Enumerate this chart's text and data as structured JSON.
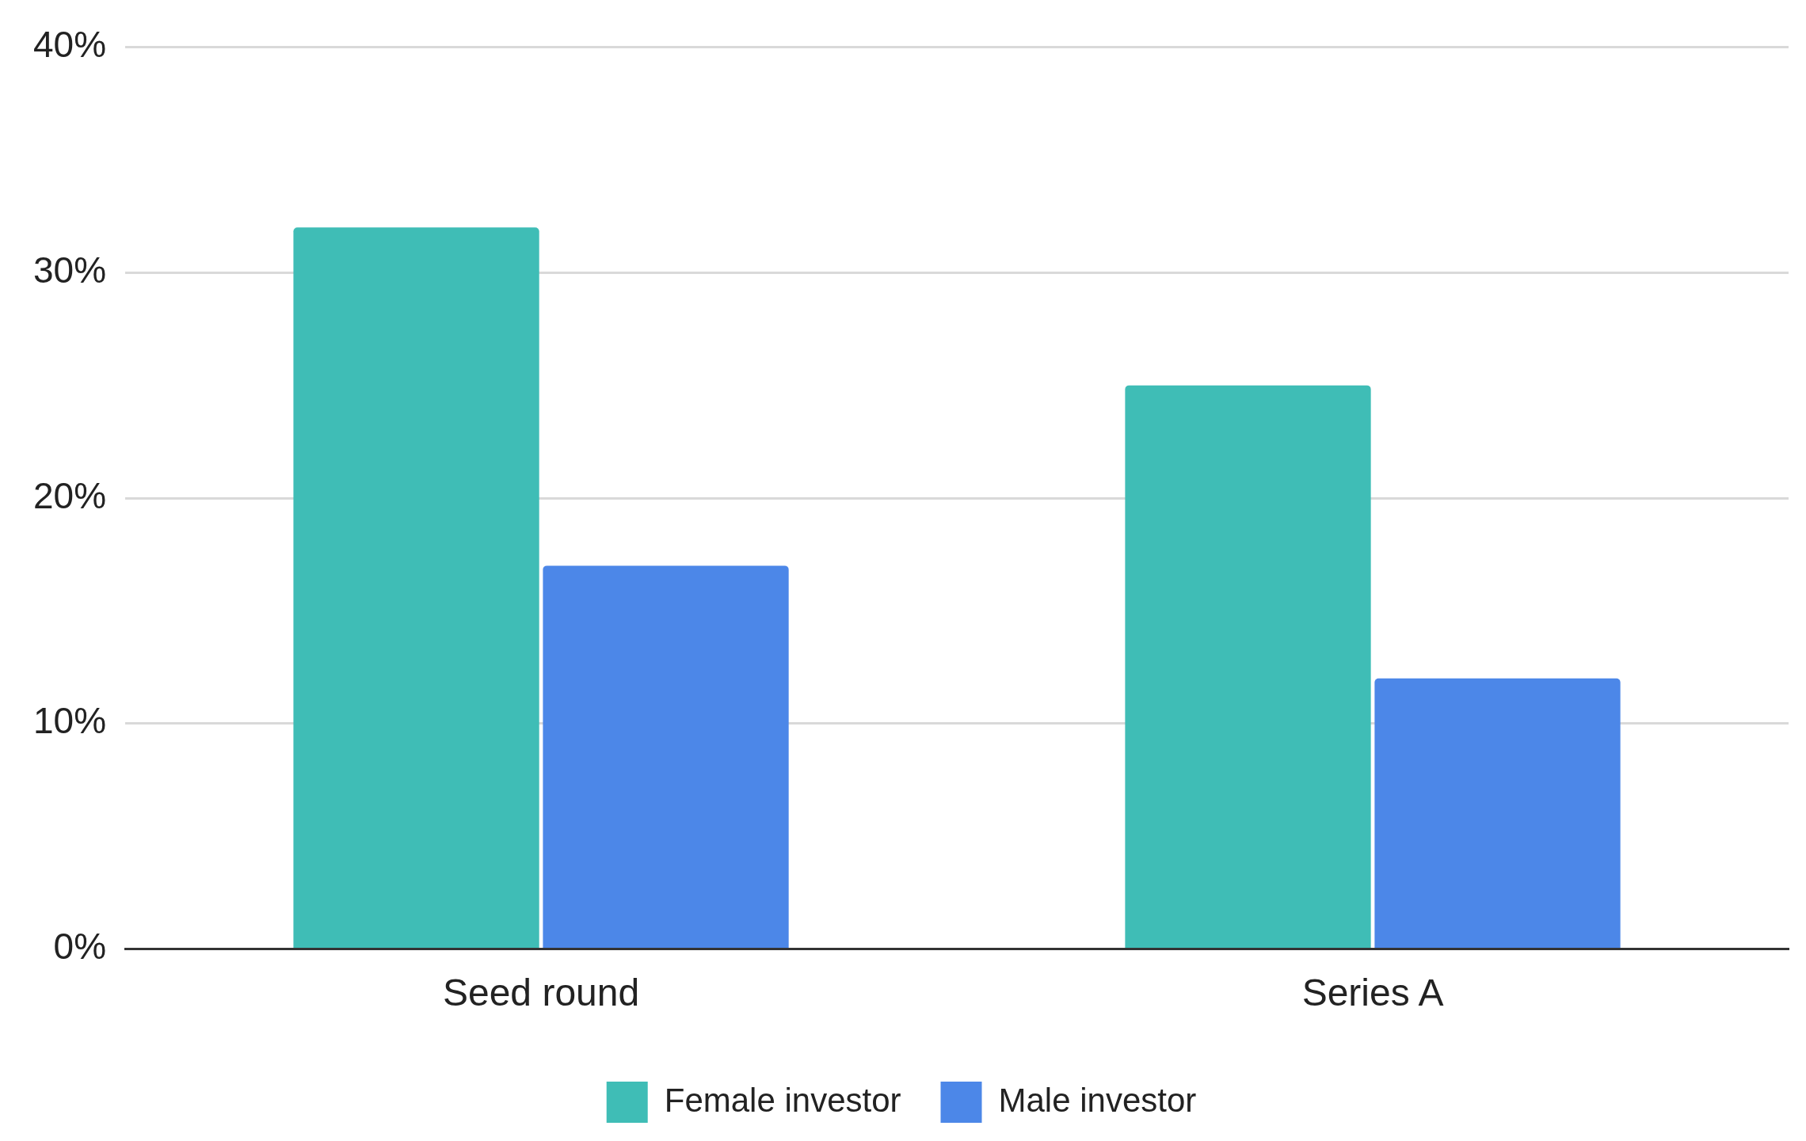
{
  "chart_data": {
    "type": "bar",
    "categories": [
      "Seed round",
      "Series A"
    ],
    "series": [
      {
        "name": "Female investor",
        "color": "#3fbdb6",
        "values": [
          32,
          25
        ]
      },
      {
        "name": "Male investor",
        "color": "#4c87e8",
        "values": [
          17,
          12
        ]
      }
    ],
    "ylim": [
      0,
      40
    ],
    "yticks": [
      {
        "value": 0,
        "label": "0%"
      },
      {
        "value": 10,
        "label": "10%"
      },
      {
        "value": 20,
        "label": "20%"
      },
      {
        "value": 30,
        "label": "30%"
      },
      {
        "value": 40,
        "label": "40%"
      }
    ],
    "grid": "y",
    "legend": "bottom"
  }
}
